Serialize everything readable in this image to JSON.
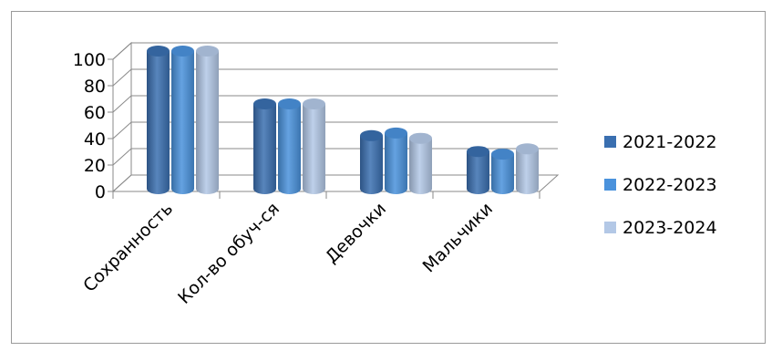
{
  "chart_data": {
    "type": "bar",
    "title": "",
    "xlabel": "",
    "ylabel": "",
    "ylim": [
      0,
      100
    ],
    "yticks": [
      0,
      20,
      40,
      60,
      80,
      100
    ],
    "categories": [
      "Сохранность",
      "Кол-во обуч-ся",
      "Девочки",
      "Мальчики"
    ],
    "series": [
      {
        "name": "2021-2022",
        "color": "#3a6fb0",
        "values": [
          100,
          60,
          36,
          24
        ]
      },
      {
        "name": "2022-2023",
        "color": "#4a92dc",
        "values": [
          100,
          60,
          38,
          22
        ]
      },
      {
        "name": "2023-2024",
        "color": "#b3c8e6",
        "values": [
          100,
          60,
          34,
          26
        ]
      }
    ],
    "grid": true,
    "legend": "right",
    "style": "3d-cylinder"
  }
}
